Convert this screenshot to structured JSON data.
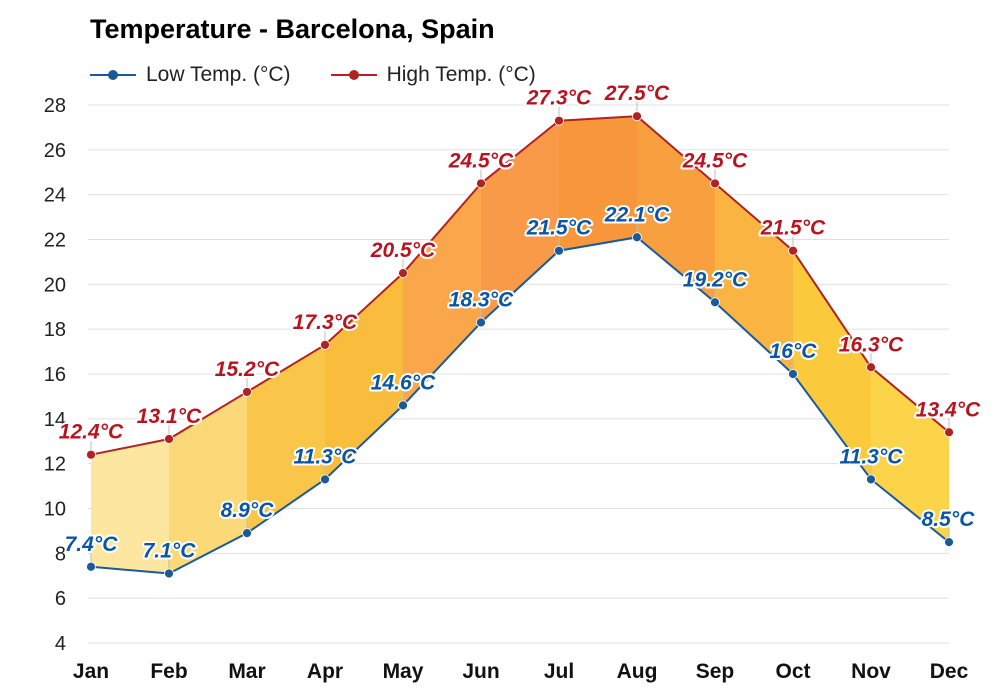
{
  "title": "Temperature - Barcelona, Spain",
  "colors": {
    "low": "#1a5a9a",
    "high": "#b22222",
    "low_label": "#0a55a5",
    "high_label": "#b8141f",
    "grid": "#e0e0e0"
  },
  "chart_data": {
    "type": "area",
    "title": "Temperature - Barcelona, Spain",
    "xlabel": "",
    "ylabel": "",
    "categories": [
      "Jan",
      "Feb",
      "Mar",
      "Apr",
      "May",
      "Jun",
      "Jul",
      "Aug",
      "Sep",
      "Oct",
      "Nov",
      "Dec"
    ],
    "ylim": [
      4,
      28
    ],
    "yticks": [
      4,
      6,
      8,
      10,
      12,
      14,
      16,
      18,
      20,
      22,
      24,
      26,
      28
    ],
    "grid": true,
    "legend_position": "top-left",
    "series": [
      {
        "name": "Low Temp. (°C)",
        "key": "low",
        "values": [
          7.4,
          7.1,
          8.9,
          11.3,
          14.6,
          18.3,
          21.5,
          22.1,
          19.2,
          16,
          11.3,
          8.5
        ],
        "labels": [
          "7.4°C",
          "7.1°C",
          "8.9°C",
          "11.3°C",
          "14.6°C",
          "18.3°C",
          "21.5°C",
          "22.1°C",
          "19.2°C",
          "16°C",
          "11.3°C",
          "8.5°C"
        ]
      },
      {
        "name": "High Temp. (°C)",
        "key": "high",
        "values": [
          12.4,
          13.1,
          15.2,
          17.3,
          20.5,
          24.5,
          27.3,
          27.5,
          24.5,
          21.5,
          16.3,
          13.4
        ],
        "labels": [
          "12.4°C",
          "13.1°C",
          "15.2°C",
          "17.3°C",
          "20.5°C",
          "24.5°C",
          "27.3°C",
          "27.5°C",
          "24.5°C",
          "21.5°C",
          "16.3°C",
          "13.4°C"
        ]
      }
    ],
    "band_colors": [
      "#fde6a0",
      "#fcd978",
      "#fac64a",
      "#f9bc3c",
      "#f9a74a",
      "#f89a48",
      "#f8963c",
      "#f8a040",
      "#f9b442",
      "#fac93c",
      "#fbd44a",
      "#fde6a0"
    ]
  }
}
